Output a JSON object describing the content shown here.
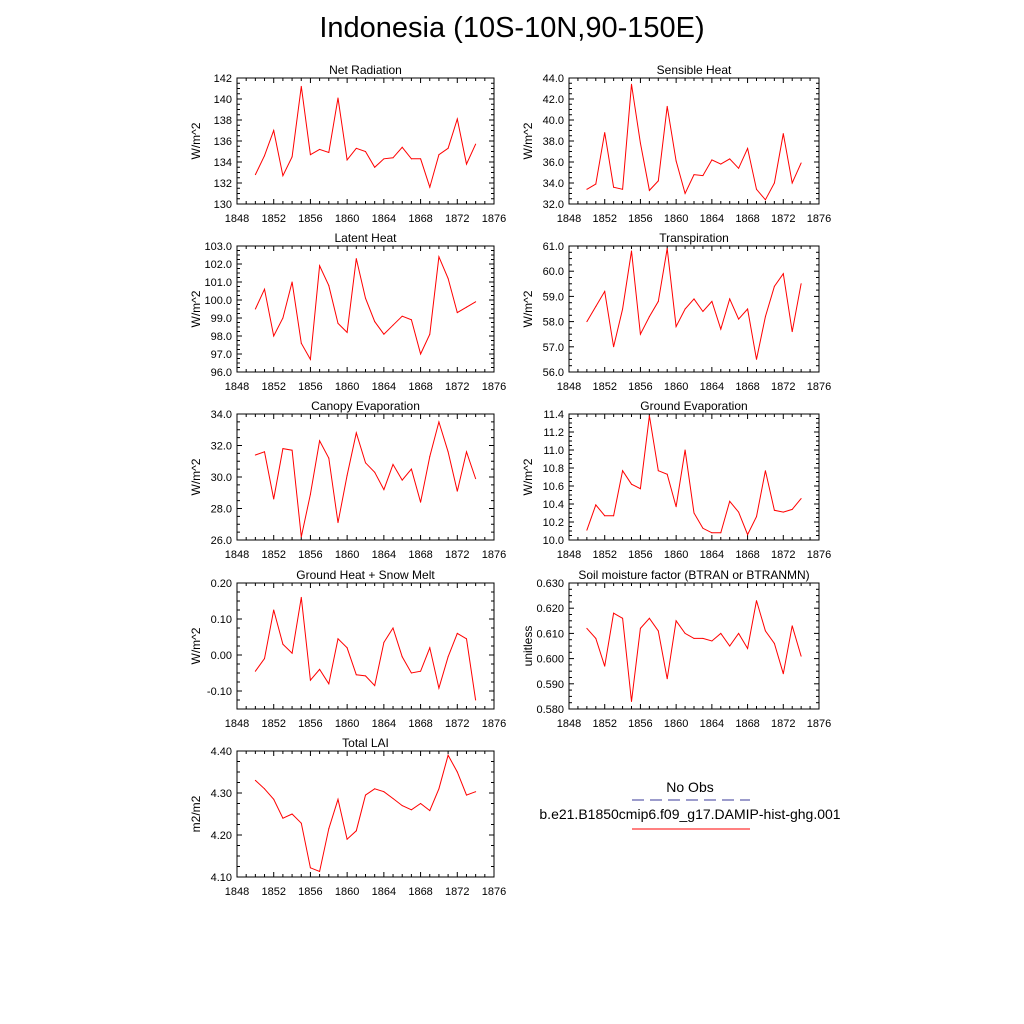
{
  "figure": {
    "title": "Indonesia (10S-10N,90-150E)",
    "legend": {
      "entries": [
        {
          "label": "No Obs",
          "color": "#3a3a9a",
          "style": "dashed"
        },
        {
          "label": "b.e21.B1850cmip6.f09_g17.DAMIP-hist-ghg.001",
          "color": "#ff0000",
          "style": "solid"
        }
      ]
    }
  },
  "chart_data": [
    {
      "type": "line",
      "title": "Net Radiation",
      "xlabel": "",
      "ylabel": "W/m^2",
      "xlim": [
        1848,
        1876
      ],
      "xticks": [
        1848,
        1852,
        1856,
        1860,
        1864,
        1868,
        1872,
        1876
      ],
      "ylim": [
        130,
        142
      ],
      "yticks": [
        130,
        132,
        134,
        136,
        138,
        140,
        142
      ],
      "ydecimals": 0,
      "x": [
        1850,
        1851,
        1852,
        1853,
        1854,
        1855,
        1856,
        1857,
        1858,
        1859,
        1860,
        1861,
        1862,
        1863,
        1864,
        1865,
        1866,
        1867,
        1868,
        1869,
        1870,
        1871,
        1872,
        1873,
        1874
      ],
      "series": [
        {
          "name": "b.e21.B1850cmip6.f09_g17.DAMIP-hist-ghg.001",
          "color": "#ff0000",
          "values": [
            132.8,
            134.6,
            137.0,
            132.7,
            134.5,
            141.2,
            134.7,
            135.2,
            134.9,
            140.1,
            134.2,
            135.3,
            135.0,
            133.5,
            134.3,
            134.4,
            135.4,
            134.3,
            134.3,
            131.6,
            134.7,
            135.3,
            138.1,
            133.8,
            135.7
          ]
        }
      ]
    },
    {
      "type": "line",
      "title": "Sensible Heat",
      "xlabel": "",
      "ylabel": "W/m^2",
      "xlim": [
        1848,
        1876
      ],
      "xticks": [
        1848,
        1852,
        1856,
        1860,
        1864,
        1868,
        1872,
        1876
      ],
      "ylim": [
        32,
        44
      ],
      "yticks": [
        32,
        34,
        36,
        38,
        40,
        42,
        44
      ],
      "ydecimals": 1,
      "x": [
        1850,
        1851,
        1852,
        1853,
        1854,
        1855,
        1856,
        1857,
        1858,
        1859,
        1860,
        1861,
        1862,
        1863,
        1864,
        1865,
        1866,
        1867,
        1868,
        1869,
        1870,
        1871,
        1872,
        1873,
        1874
      ],
      "series": [
        {
          "name": "b.e21.B1850cmip6.f09_g17.DAMIP-hist-ghg.001",
          "color": "#ff0000",
          "values": [
            33.4,
            33.9,
            38.8,
            33.6,
            33.4,
            43.4,
            37.8,
            33.3,
            34.2,
            41.3,
            36.1,
            33.0,
            34.8,
            34.7,
            36.2,
            35.8,
            36.3,
            35.4,
            37.3,
            33.4,
            32.4,
            34.0,
            38.7,
            34.0,
            35.9
          ]
        }
      ]
    },
    {
      "type": "line",
      "title": "Latent Heat",
      "xlabel": "",
      "ylabel": "W/m^2",
      "xlim": [
        1848,
        1876
      ],
      "xticks": [
        1848,
        1852,
        1856,
        1860,
        1864,
        1868,
        1872,
        1876
      ],
      "ylim": [
        96,
        103
      ],
      "yticks": [
        96,
        97,
        98,
        99,
        100,
        101,
        102,
        103
      ],
      "ydecimals": 1,
      "x": [
        1850,
        1851,
        1852,
        1853,
        1854,
        1855,
        1856,
        1857,
        1858,
        1859,
        1860,
        1861,
        1862,
        1863,
        1864,
        1865,
        1866,
        1867,
        1868,
        1869,
        1870,
        1871,
        1872,
        1873,
        1874
      ],
      "series": [
        {
          "name": "b.e21.B1850cmip6.f09_g17.DAMIP-hist-ghg.001",
          "color": "#ff0000",
          "values": [
            99.5,
            100.6,
            98.0,
            99.0,
            101.0,
            97.6,
            96.7,
            101.9,
            100.8,
            98.7,
            98.2,
            102.3,
            100.1,
            98.8,
            98.1,
            98.6,
            99.1,
            98.9,
            97.0,
            98.1,
            102.4,
            101.2,
            99.3,
            99.6,
            99.9
          ]
        }
      ]
    },
    {
      "type": "line",
      "title": "Transpiration",
      "xlabel": "",
      "ylabel": "W/m^2",
      "xlim": [
        1848,
        1876
      ],
      "xticks": [
        1848,
        1852,
        1856,
        1860,
        1864,
        1868,
        1872,
        1876
      ],
      "ylim": [
        56,
        61
      ],
      "yticks": [
        56,
        57,
        58,
        59,
        60,
        61
      ],
      "ydecimals": 1,
      "x": [
        1850,
        1851,
        1852,
        1853,
        1854,
        1855,
        1856,
        1857,
        1858,
        1859,
        1860,
        1861,
        1862,
        1863,
        1864,
        1865,
        1866,
        1867,
        1868,
        1869,
        1870,
        1871,
        1872,
        1873,
        1874
      ],
      "series": [
        {
          "name": "b.e21.B1850cmip6.f09_g17.DAMIP-hist-ghg.001",
          "color": "#ff0000",
          "values": [
            58.0,
            58.6,
            59.2,
            57.0,
            58.5,
            60.8,
            57.5,
            58.2,
            58.8,
            60.9,
            57.8,
            58.5,
            58.9,
            58.4,
            58.8,
            57.7,
            58.9,
            58.1,
            58.5,
            56.5,
            58.2,
            59.4,
            59.9,
            57.6,
            59.5
          ]
        }
      ]
    },
    {
      "type": "line",
      "title": "Canopy Evaporation",
      "xlabel": "",
      "ylabel": "W/m^2",
      "xlim": [
        1848,
        1876
      ],
      "xticks": [
        1848,
        1852,
        1856,
        1860,
        1864,
        1868,
        1872,
        1876
      ],
      "ylim": [
        26,
        34
      ],
      "yticks": [
        26,
        28,
        30,
        32,
        34
      ],
      "ydecimals": 1,
      "x": [
        1850,
        1851,
        1852,
        1853,
        1854,
        1855,
        1856,
        1857,
        1858,
        1859,
        1860,
        1861,
        1862,
        1863,
        1864,
        1865,
        1866,
        1867,
        1868,
        1869,
        1870,
        1871,
        1872,
        1873,
        1874
      ],
      "series": [
        {
          "name": "b.e21.B1850cmip6.f09_g17.DAMIP-hist-ghg.001",
          "color": "#ff0000",
          "values": [
            31.4,
            31.6,
            28.6,
            31.8,
            31.7,
            26.2,
            28.9,
            32.3,
            31.2,
            27.1,
            30.1,
            32.8,
            30.9,
            30.3,
            29.2,
            30.8,
            29.8,
            30.5,
            28.4,
            31.3,
            33.5,
            31.6,
            29.1,
            31.6,
            29.9
          ]
        }
      ]
    },
    {
      "type": "line",
      "title": "Ground Evaporation",
      "xlabel": "",
      "ylabel": "W/m^2",
      "xlim": [
        1848,
        1876
      ],
      "xticks": [
        1848,
        1852,
        1856,
        1860,
        1864,
        1868,
        1872,
        1876
      ],
      "ylim": [
        10.0,
        11.4
      ],
      "yticks": [
        10.0,
        10.2,
        10.4,
        10.6,
        10.8,
        11.0,
        11.2,
        11.4
      ],
      "ydecimals": 1,
      "x": [
        1850,
        1851,
        1852,
        1853,
        1854,
        1855,
        1856,
        1857,
        1858,
        1859,
        1860,
        1861,
        1862,
        1863,
        1864,
        1865,
        1866,
        1867,
        1868,
        1869,
        1870,
        1871,
        1872,
        1873,
        1874
      ],
      "series": [
        {
          "name": "b.e21.B1850cmip6.f09_g17.DAMIP-hist-ghg.001",
          "color": "#ff0000",
          "values": [
            10.11,
            10.39,
            10.27,
            10.27,
            10.77,
            10.62,
            10.57,
            11.38,
            10.77,
            10.73,
            10.37,
            11.0,
            10.3,
            10.13,
            10.08,
            10.08,
            10.43,
            10.31,
            10.06,
            10.26,
            10.77,
            10.33,
            10.31,
            10.34,
            10.46
          ]
        }
      ]
    },
    {
      "type": "line",
      "title": "Ground Heat + Snow Melt",
      "xlabel": "",
      "ylabel": "W/m^2",
      "xlim": [
        1848,
        1876
      ],
      "xticks": [
        1848,
        1852,
        1856,
        1860,
        1864,
        1868,
        1872,
        1876
      ],
      "ylim": [
        -0.15,
        0.2
      ],
      "yticks": [
        -0.1,
        0.0,
        0.1,
        0.2
      ],
      "ydecimals": 2,
      "x": [
        1850,
        1851,
        1852,
        1853,
        1854,
        1855,
        1856,
        1857,
        1858,
        1859,
        1860,
        1861,
        1862,
        1863,
        1864,
        1865,
        1866,
        1867,
        1868,
        1869,
        1870,
        1871,
        1872,
        1873,
        1874
      ],
      "series": [
        {
          "name": "b.e21.B1850cmip6.f09_g17.DAMIP-hist-ghg.001",
          "color": "#ff0000",
          "values": [
            -0.045,
            -0.01,
            0.125,
            0.03,
            0.005,
            0.16,
            -0.07,
            -0.04,
            -0.08,
            0.045,
            0.02,
            -0.055,
            -0.058,
            -0.085,
            0.035,
            0.075,
            -0.005,
            -0.05,
            -0.045,
            0.02,
            -0.092,
            -0.005,
            0.06,
            0.045,
            -0.125
          ]
        }
      ]
    },
    {
      "type": "line",
      "title": "Soil moisture factor (BTRAN or BTRANMN)",
      "xlabel": "",
      "ylabel": "unitless",
      "xlim": [
        1848,
        1876
      ],
      "xticks": [
        1848,
        1852,
        1856,
        1860,
        1864,
        1868,
        1872,
        1876
      ],
      "ylim": [
        0.58,
        0.63
      ],
      "yticks": [
        0.58,
        0.59,
        0.6,
        0.61,
        0.62,
        0.63
      ],
      "ydecimals": 3,
      "x": [
        1850,
        1851,
        1852,
        1853,
        1854,
        1855,
        1856,
        1857,
        1858,
        1859,
        1860,
        1861,
        1862,
        1863,
        1864,
        1865,
        1866,
        1867,
        1868,
        1869,
        1870,
        1871,
        1872,
        1873,
        1874
      ],
      "series": [
        {
          "name": "b.e21.B1850cmip6.f09_g17.DAMIP-hist-ghg.001",
          "color": "#ff0000",
          "values": [
            0.612,
            0.608,
            0.597,
            0.618,
            0.616,
            0.583,
            0.612,
            0.616,
            0.611,
            0.592,
            0.615,
            0.61,
            0.608,
            0.608,
            0.607,
            0.61,
            0.605,
            0.61,
            0.604,
            0.623,
            0.611,
            0.606,
            0.594,
            0.613,
            0.601
          ]
        }
      ]
    },
    {
      "type": "line",
      "title": "Total LAI",
      "xlabel": "",
      "ylabel": "m2/m2",
      "xlim": [
        1848,
        1876
      ],
      "xticks": [
        1848,
        1852,
        1856,
        1860,
        1864,
        1868,
        1872,
        1876
      ],
      "ylim": [
        4.1,
        4.4
      ],
      "yticks": [
        4.1,
        4.2,
        4.3,
        4.4
      ],
      "ydecimals": 2,
      "x": [
        1850,
        1851,
        1852,
        1853,
        1854,
        1855,
        1856,
        1857,
        1858,
        1859,
        1860,
        1861,
        1862,
        1863,
        1864,
        1865,
        1866,
        1867,
        1868,
        1869,
        1870,
        1871,
        1872,
        1873,
        1874
      ],
      "series": [
        {
          "name": "b.e21.B1850cmip6.f09_g17.DAMIP-hist-ghg.001",
          "color": "#ff0000",
          "values": [
            4.33,
            4.31,
            4.285,
            4.24,
            4.25,
            4.228,
            4.122,
            4.113,
            4.215,
            4.285,
            4.19,
            4.21,
            4.295,
            4.31,
            4.303,
            4.287,
            4.27,
            4.26,
            4.275,
            4.258,
            4.31,
            4.39,
            4.35,
            4.295,
            4.303
          ]
        }
      ]
    }
  ]
}
